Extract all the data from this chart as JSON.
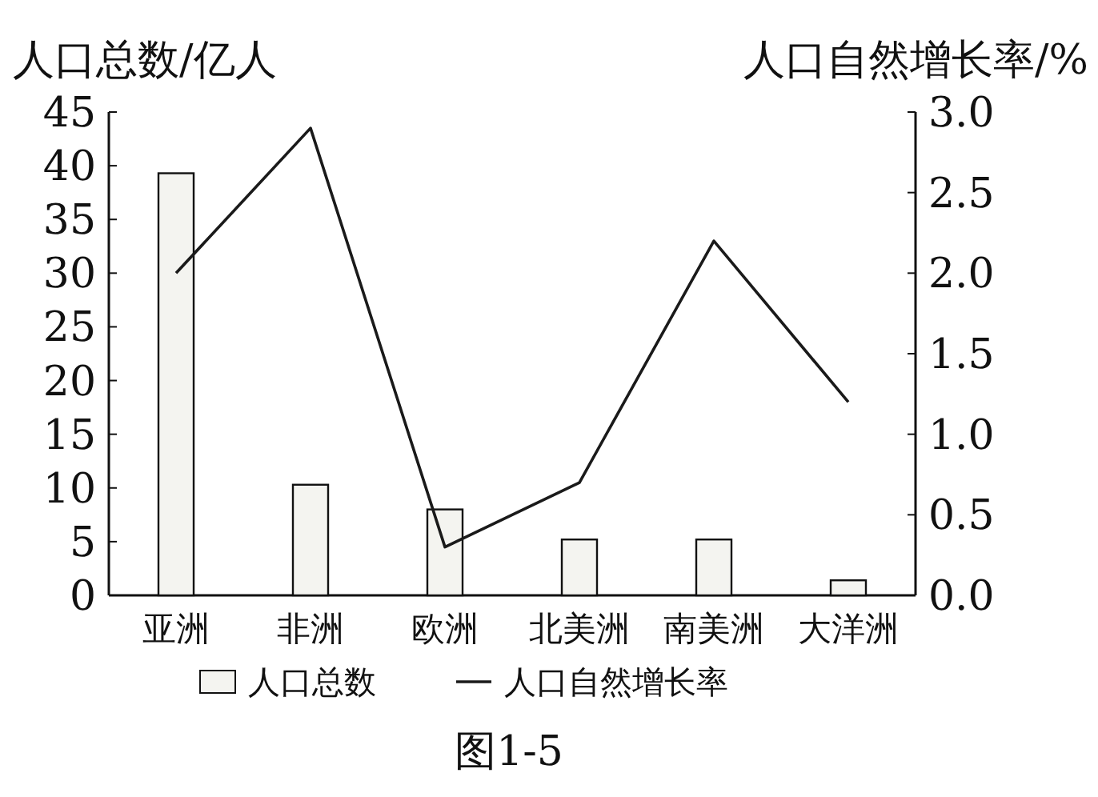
{
  "chart_data": {
    "type": "bar",
    "categories": [
      "亚洲",
      "非洲",
      "欧洲",
      "北美洲",
      "南美洲",
      "大洋洲"
    ],
    "ylabel": "人口总数/亿人",
    "y2label": "人口自然增长率/%",
    "ylim": [
      0,
      45
    ],
    "yticks": [
      0,
      5,
      10,
      15,
      20,
      25,
      30,
      35,
      40,
      45
    ],
    "y2lim": [
      0,
      3
    ],
    "y2ticks": [
      {
        "value": 0,
        "label": "0.0"
      },
      {
        "value": 0.5,
        "label": "0.5"
      },
      {
        "value": 1,
        "label": "1.0"
      },
      {
        "value": 1.5,
        "label": "1.5"
      },
      {
        "value": 2,
        "label": "2.0"
      },
      {
        "value": 2.5,
        "label": "2.5"
      },
      {
        "value": 3,
        "label": "3.0"
      }
    ],
    "series": [
      {
        "name": "人口总数",
        "color": "#f4f4f0",
        "values": [
          39.3,
          10.3,
          8.0,
          5.2,
          5.2,
          1.4
        ]
      },
      {
        "name": "人口自然增长率",
        "type": "line",
        "axis": "y2",
        "color": "#1a1a1a",
        "values": [
          2.0,
          2.9,
          0.3,
          0.7,
          2.2,
          1.2
        ]
      }
    ],
    "marker": "none",
    "legend": "bottom",
    "annotations": [
      "图1-5"
    ]
  }
}
